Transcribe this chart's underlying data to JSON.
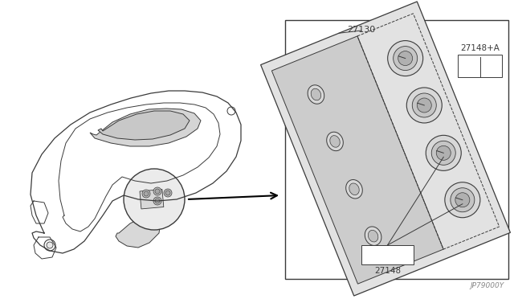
{
  "bg_color": "#ffffff",
  "line_color": "#3a3a3a",
  "part_number": "JP79000Y",
  "fig_width": 6.4,
  "fig_height": 3.72,
  "dpi": 100,
  "label_27130": "27130",
  "label_27148": "27148",
  "label_27148A": "27148+A"
}
